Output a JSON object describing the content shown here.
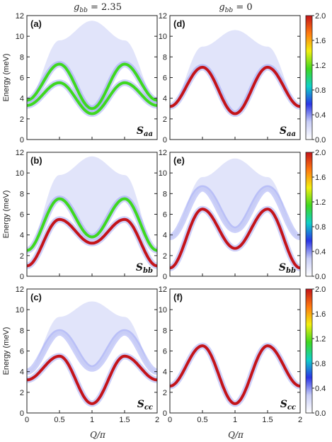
{
  "columns": [
    {
      "title": "g_bb = 2.35",
      "title_display": "𝑔",
      "sub": "bb",
      "rest": " = 2.35"
    },
    {
      "title": "g_bb = 0",
      "title_display": "𝑔",
      "sub": "bb",
      "rest": " = 0"
    }
  ],
  "xlabel": "Q/π",
  "ylabel": "Energy (meV)",
  "colorbar_ticks": [
    "0.0",
    "0.4",
    "0.8",
    "1.2",
    "1.6",
    "2.0"
  ],
  "colors": {
    "low": "#ffffff",
    "colormap": [
      "#ffffff",
      "#c8cdf6",
      "#2a35e6",
      "#0fd0c8",
      "#3ed820",
      "#f2ef10",
      "#ff7a10",
      "#c4141a"
    ]
  },
  "chart_data": [
    {
      "type": "heatmap",
      "panel": "(a)",
      "component": "S_aa",
      "comp_main": "S",
      "comp_sub": "aa",
      "g_bb": 2.35,
      "xlim": [
        0,
        2
      ],
      "ylim": [
        0,
        12
      ],
      "zlim": [
        0,
        2.0
      ],
      "x_ticks": [
        0,
        0.5,
        1,
        1.5,
        2
      ],
      "y_ticks": [
        0,
        2,
        4,
        6,
        8,
        10,
        12
      ],
      "branches": [
        {
          "name": "upper",
          "energy_at_Q": {
            "0": 3.8,
            "0.5": 7.3,
            "1": 3.0,
            "1.5": 7.3,
            "2": 3.8
          },
          "peak_intensity": 1.0
        },
        {
          "name": "lower",
          "energy_at_Q": {
            "0": 3.3,
            "0.5": 5.5,
            "1": 2.5,
            "1.5": 5.5,
            "2": 3.3
          },
          "peak_intensity": 1.0
        }
      ],
      "continuum": {
        "top_energy_at_Q": {
          "0.5": 9.6,
          "1": 11.5,
          "1.5": 9.6
        },
        "intensity": 0.3
      }
    },
    {
      "type": "heatmap",
      "panel": "(d)",
      "component": "S_aa",
      "comp_main": "S",
      "comp_sub": "aa",
      "g_bb": 0,
      "xlim": [
        0,
        2
      ],
      "ylim": [
        0,
        12
      ],
      "zlim": [
        0,
        2.0
      ],
      "x_ticks": [
        0,
        0.5,
        1,
        1.5,
        2
      ],
      "y_ticks": [
        0,
        2,
        4,
        6,
        8,
        10,
        12
      ],
      "branches": [
        {
          "name": "upper",
          "energy_at_Q": {
            "0": 3.2,
            "0.5": 7.0,
            "1": 2.5,
            "1.5": 7.0,
            "2": 3.2
          },
          "peak_intensity": 2.0
        }
      ],
      "continuum": {
        "top_energy_at_Q": {
          "0.5": 9.0,
          "1": 10.6,
          "1.5": 9.0
        },
        "intensity": 0.3
      }
    },
    {
      "type": "heatmap",
      "panel": "(b)",
      "component": "S_bb",
      "comp_main": "S",
      "comp_sub": "bb",
      "g_bb": 2.35,
      "xlim": [
        0,
        2
      ],
      "ylim": [
        0,
        12
      ],
      "zlim": [
        0,
        2.0
      ],
      "x_ticks": [
        0,
        0.5,
        1,
        1.5,
        2
      ],
      "y_ticks": [
        0,
        2,
        4,
        6,
        8,
        10,
        12
      ],
      "branches": [
        {
          "name": "upper",
          "energy_at_Q": {
            "0": 2.5,
            "0.5": 7.5,
            "1": 3.8,
            "1.5": 7.5,
            "2": 2.5
          },
          "peak_intensity": 1.0
        },
        {
          "name": "lower",
          "energy_at_Q": {
            "0": 1.0,
            "0.5": 5.5,
            "1": 3.2,
            "1.5": 5.5,
            "2": 1.0
          },
          "peak_intensity": 2.0
        }
      ],
      "continuum": {
        "top_energy_at_Q": {
          "0.5": 9.8,
          "1": 11.6,
          "1.5": 9.8
        },
        "intensity": 0.3
      }
    },
    {
      "type": "heatmap",
      "panel": "(e)",
      "component": "S_bb",
      "comp_main": "S",
      "comp_sub": "bb",
      "g_bb": 0,
      "xlim": [
        0,
        2
      ],
      "ylim": [
        0,
        12
      ],
      "zlim": [
        0,
        2.0
      ],
      "x_ticks": [
        0,
        0.5,
        1,
        1.5,
        2
      ],
      "y_ticks": [
        0,
        2,
        4,
        6,
        8,
        10,
        12
      ],
      "branches": [
        {
          "name": "upper",
          "energy_at_Q": {
            "0": 3.8,
            "0.5": 8.5,
            "1": 4.5,
            "1.5": 8.5,
            "2": 3.8
          },
          "peak_intensity": 0.4
        },
        {
          "name": "lower",
          "energy_at_Q": {
            "0": 0.8,
            "0.5": 6.5,
            "1": 2.7,
            "1.5": 6.5,
            "2": 0.8
          },
          "peak_intensity": 2.0
        }
      ],
      "continuum": {
        "top_energy_at_Q": {
          "0.5": 9.6,
          "1": 11.4,
          "1.5": 9.6
        },
        "intensity": 0.3
      }
    },
    {
      "type": "heatmap",
      "panel": "(c)",
      "component": "S_cc",
      "comp_main": "S",
      "comp_sub": "cc",
      "g_bb": 2.35,
      "xlim": [
        0,
        2
      ],
      "ylim": [
        0,
        12
      ],
      "zlim": [
        0,
        2.0
      ],
      "x_ticks": [
        0,
        0.5,
        1,
        1.5,
        2
      ],
      "y_ticks": [
        0,
        2,
        4,
        6,
        8,
        10,
        12
      ],
      "branches": [
        {
          "name": "upper",
          "energy_at_Q": {
            "0": 4.0,
            "0.5": 7.8,
            "1": 4.3,
            "1.5": 7.8,
            "2": 4.0
          },
          "peak_intensity": 0.4
        },
        {
          "name": "lower",
          "energy_at_Q": {
            "0": 3.2,
            "0.5": 5.5,
            "1": 0.9,
            "1.5": 5.5,
            "2": 3.2
          },
          "peak_intensity": 2.0
        }
      ],
      "continuum": {
        "top_energy_at_Q": {
          "0.5": 9.3,
          "1": 10.8,
          "1.5": 9.3
        },
        "intensity": 0.15
      }
    },
    {
      "type": "heatmap",
      "panel": "(f)",
      "component": "S_cc",
      "comp_main": "S",
      "comp_sub": "cc",
      "g_bb": 0,
      "xlim": [
        0,
        2
      ],
      "ylim": [
        0,
        12
      ],
      "zlim": [
        0,
        2.0
      ],
      "x_ticks": [
        0,
        0.5,
        1,
        1.5,
        2
      ],
      "y_ticks": [
        0,
        2,
        4,
        6,
        8,
        10,
        12
      ],
      "branches": [
        {
          "name": "upper",
          "energy_at_Q": {
            "0": 2.6,
            "0.5": 6.5,
            "1": 0.9,
            "1.5": 6.5,
            "2": 2.6
          },
          "peak_intensity": 2.0
        }
      ],
      "continuum": {
        "top_energy_at_Q": {
          "0.5": 8.8,
          "1": 10.2,
          "1.5": 8.8
        },
        "intensity": 0.12
      }
    }
  ]
}
